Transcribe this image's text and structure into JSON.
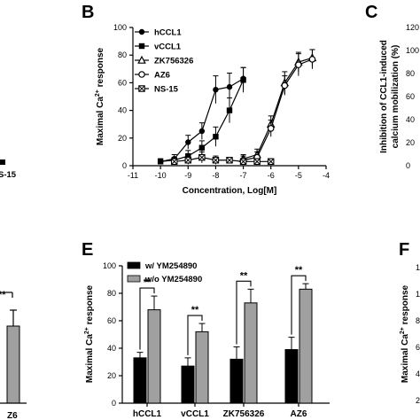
{
  "panels": {
    "a_fragment": {
      "legend_text": "S-15"
    },
    "b_label": "B",
    "c_label": "C",
    "c_ylabel_line1": "Inhibition of CCL1-induced",
    "c_ylabel_line2": "calcium mobilization (%)",
    "c_ticks": [
      "120",
      "100",
      "80",
      "60",
      "40",
      "20",
      "0"
    ],
    "d_fragment": {
      "sig": "**",
      "xlabel": "Z6"
    },
    "e_label": "E",
    "f_label": "F",
    "f_ylabel": "Maximal Ca",
    "f_ylabel_sup": "2+",
    "f_ylabel_tail": " response",
    "f_ticks": [
      "1",
      "1",
      "8",
      "6",
      "4",
      "2"
    ]
  },
  "chart_data": [
    {
      "panel": "B",
      "type": "line",
      "xlabel": "Concentration, Log[M]",
      "ylabel": "Maximal Ca",
      "ylabel_sup": "2+",
      "ylabel_tail": " response",
      "xlim": [
        -11,
        -4
      ],
      "ylim": [
        0,
        100
      ],
      "xticks": [
        "-11",
        "-10",
        "-9",
        "-8",
        "-7",
        "-6",
        "-5",
        "-4"
      ],
      "yticks": [
        "0",
        "20",
        "40",
        "60",
        "80",
        "100"
      ],
      "legend_position": "top-left",
      "series": [
        {
          "name": "hCCL1",
          "marker": "circle-filled",
          "x": [
            -10,
            -9.5,
            -9,
            -8.5,
            -8,
            -7.5,
            -7
          ],
          "y": [
            3,
            5,
            17,
            25,
            55,
            57,
            63
          ],
          "err": [
            2,
            3,
            5,
            6,
            10,
            10,
            8
          ]
        },
        {
          "name": "vCCL1",
          "marker": "square-filled",
          "x": [
            -10,
            -9.5,
            -9,
            -8.5,
            -8,
            -7.5,
            -7
          ],
          "y": [
            3,
            4,
            7,
            13,
            21,
            40,
            62
          ],
          "err": [
            2,
            2,
            4,
            5,
            7,
            9,
            9
          ]
        },
        {
          "name": "ZK756326",
          "marker": "triangle-open",
          "x": [
            -7,
            -6.5,
            -6,
            -5.5,
            -5,
            -4.5
          ],
          "y": [
            5,
            8,
            30,
            60,
            75,
            78
          ],
          "err": [
            3,
            4,
            6,
            8,
            7,
            6
          ]
        },
        {
          "name": "AZ6",
          "marker": "circle-open",
          "x": [
            -7,
            -6.5,
            -6,
            -5.5,
            -5,
            -4.5
          ],
          "y": [
            4,
            6,
            27,
            58,
            73,
            77
          ],
          "err": [
            3,
            4,
            6,
            7,
            8,
            7
          ]
        },
        {
          "name": "NS-15",
          "marker": "square-cross",
          "x": [
            -9.5,
            -9,
            -8.5,
            -8,
            -7.5,
            -7,
            -6.5,
            -6
          ],
          "y": [
            3,
            4,
            6,
            4,
            4,
            3,
            3,
            3
          ],
          "err": [
            2,
            3,
            4,
            3,
            2,
            2,
            2,
            2
          ]
        }
      ]
    },
    {
      "panel": "E",
      "type": "bar",
      "ylabel": "Maximal Ca",
      "ylabel_sup": "2+",
      "ylabel_tail": " response",
      "ylim": [
        0,
        100
      ],
      "yticks": [
        "0",
        "20",
        "40",
        "60",
        "80",
        "100"
      ],
      "categories": [
        "hCCL1",
        "vCCL1",
        "ZK756326",
        "AZ6"
      ],
      "legend_position": "top-left",
      "significance": [
        "**",
        "**",
        "**",
        "**"
      ],
      "colors": [
        "#000000",
        "#a0a0a0"
      ],
      "series": [
        {
          "name": "w/ YM254890",
          "values": [
            33,
            27,
            32,
            39
          ],
          "err": [
            4,
            6,
            9,
            9
          ]
        },
        {
          "name": "w/o YM254890",
          "values": [
            68,
            52,
            73,
            83
          ],
          "err": [
            10,
            6,
            10,
            4
          ]
        }
      ]
    },
    {
      "panel": "D",
      "type": "bar",
      "categories": [
        "AZ6"
      ],
      "series": [
        {
          "name": "",
          "values": [
            68
          ],
          "err": [
            14
          ]
        }
      ]
    }
  ]
}
